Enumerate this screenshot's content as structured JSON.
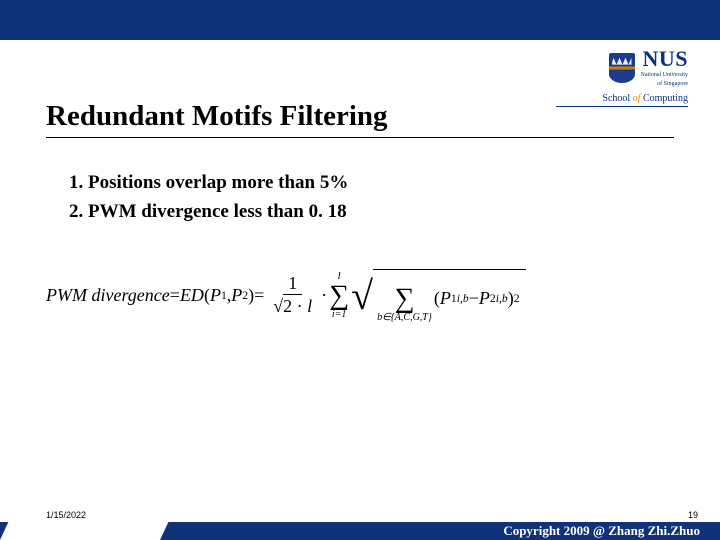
{
  "accent_color": "#10327a",
  "logo": {
    "short": "NUS",
    "full_line1": "National University",
    "full_line2": "of Singapore",
    "school_prefix": "School ",
    "school_of": "of",
    "school_suffix": " Computing"
  },
  "title": "Redundant Motifs Filtering",
  "bullets": [
    "Positions overlap more than 5%",
    "PWM divergence less than 0. 18"
  ],
  "formula": {
    "lhs1": "PWM  divergence",
    "eq": " = ",
    "lhs2": "ED",
    "args_open": "(",
    "p1": "P",
    "p1_sup": "1",
    "comma": ", ",
    "p2": "P",
    "p2_sup": "2",
    "args_close": ")",
    "frac1_num": "1",
    "frac1_den_pre": "√2 · ",
    "frac1_den_var": "l",
    "dot": " · ",
    "sum_top": "l",
    "sum_sym": "∑",
    "sum_bot": "i=1",
    "inner_sum_sym": "∑",
    "inner_sum_bot": "b∈{A,C,G,T}",
    "term_open": "(",
    "t1": "P",
    "t1_sup": "1",
    "t1_sub": "i,b",
    "minus": " − ",
    "t2": "P",
    "t2_sup": "2",
    "t2_sub": "i,b",
    "term_close": ")",
    "square": "2"
  },
  "footer": {
    "date": "1/15/2022",
    "page": "19",
    "copyright": "Copyright 2009 @ Zhang Zhi.Zhuo"
  }
}
